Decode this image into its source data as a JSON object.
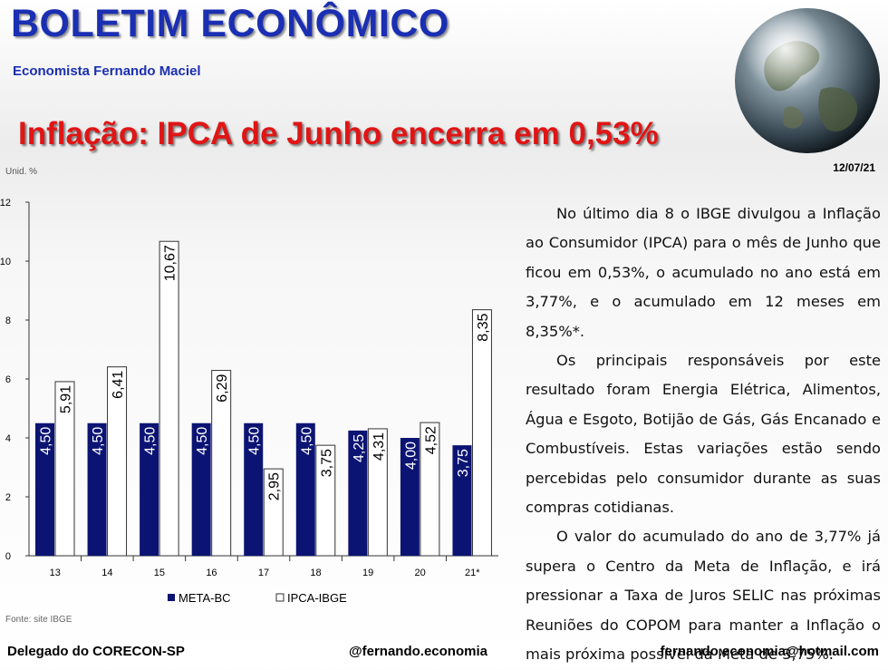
{
  "header": {
    "title": "BOLETIM ECONÔMICO",
    "author": "Economista Fernando Maciel",
    "headline": "Inflação: IPCA de Junho encerra em 0,53%",
    "date": "12/07/21"
  },
  "chart_data": {
    "type": "bar",
    "unit_label": "Unid. %",
    "source": "Fonte: site IBGE",
    "categories": [
      "13",
      "14",
      "15",
      "16",
      "17",
      "18",
      "19",
      "20",
      "21*"
    ],
    "series": [
      {
        "name": "META-BC",
        "values": [
          4.5,
          4.5,
          4.5,
          4.5,
          4.5,
          4.5,
          4.25,
          4.0,
          3.75
        ],
        "labels": [
          "4,50",
          "4,50",
          "4,50",
          "4,50",
          "4,50",
          "4,50",
          "4,25",
          "4,00",
          "3,75"
        ],
        "color": "#0c1473"
      },
      {
        "name": "IPCA-IBGE",
        "values": [
          5.91,
          6.41,
          10.67,
          6.29,
          2.95,
          3.75,
          4.31,
          4.52,
          8.35
        ],
        "labels": [
          "5,91",
          "6,41",
          "10,67",
          "6,29",
          "2,95",
          "3,75",
          "4,31",
          "4,52",
          "8,35"
        ],
        "color": "#ffffff"
      }
    ],
    "y_ticks": [
      "0",
      "2",
      "4",
      "6",
      "8",
      "10",
      "12"
    ],
    "ylim": [
      0,
      12
    ],
    "legend_position": "bottom"
  },
  "article": {
    "paragraphs": [
      "No último dia 8 o IBGE divulgou a Inflação ao Consumidor (IPCA) para o mês de Junho que ficou em 0,53%, o acumulado no ano está em 3,77%, e o acumulado em 12 meses em 8,35%*.",
      "Os principais responsáveis por este resultado foram Energia Elétrica, Alimentos, Água e Esgoto, Botijão de Gás, Gás Encanado e Combustíveis. Estas variações estão sendo percebidas pelo consumidor durante as suas compras cotidianas.",
      "O valor do acumulado do ano de 3,77% já supera o Centro da Meta de Inflação, e irá pressionar a Taxa de Juros SELIC nas próximas Reuniões do COPOM para manter a Inflação o mais próxima possível da Meta de 3,75%."
    ]
  },
  "footer": {
    "left": "Delegado do CORECON-SP",
    "center": "@fernando.economia",
    "right": "fernando.economia@hotmail.com"
  }
}
